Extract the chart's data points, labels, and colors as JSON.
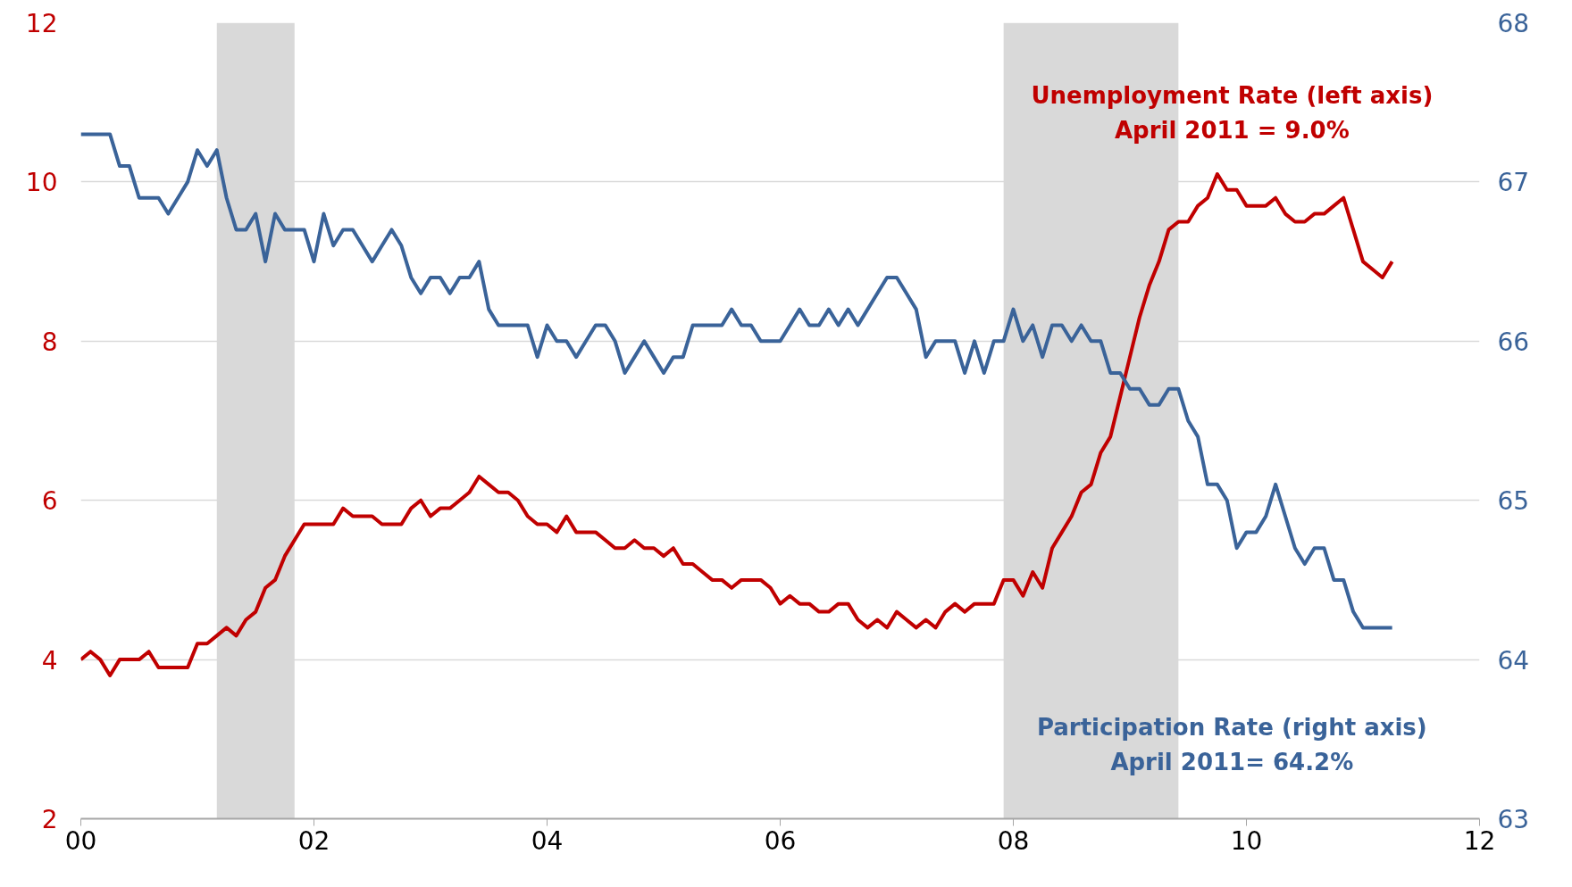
{
  "chart_data": {
    "type": "line",
    "x": [
      "2000-01",
      "2000-02",
      "2000-03",
      "2000-04",
      "2000-05",
      "2000-06",
      "2000-07",
      "2000-08",
      "2000-09",
      "2000-10",
      "2000-11",
      "2000-12",
      "2001-01",
      "2001-02",
      "2001-03",
      "2001-04",
      "2001-05",
      "2001-06",
      "2001-07",
      "2001-08",
      "2001-09",
      "2001-10",
      "2001-11",
      "2001-12",
      "2002-01",
      "2002-02",
      "2002-03",
      "2002-04",
      "2002-05",
      "2002-06",
      "2002-07",
      "2002-08",
      "2002-09",
      "2002-10",
      "2002-11",
      "2002-12",
      "2003-01",
      "2003-02",
      "2003-03",
      "2003-04",
      "2003-05",
      "2003-06",
      "2003-07",
      "2003-08",
      "2003-09",
      "2003-10",
      "2003-11",
      "2003-12",
      "2004-01",
      "2004-02",
      "2004-03",
      "2004-04",
      "2004-05",
      "2004-06",
      "2004-07",
      "2004-08",
      "2004-09",
      "2004-10",
      "2004-11",
      "2004-12",
      "2005-01",
      "2005-02",
      "2005-03",
      "2005-04",
      "2005-05",
      "2005-06",
      "2005-07",
      "2005-08",
      "2005-09",
      "2005-10",
      "2005-11",
      "2005-12",
      "2006-01",
      "2006-02",
      "2006-03",
      "2006-04",
      "2006-05",
      "2006-06",
      "2006-07",
      "2006-08",
      "2006-09",
      "2006-10",
      "2006-11",
      "2006-12",
      "2007-01",
      "2007-02",
      "2007-03",
      "2007-04",
      "2007-05",
      "2007-06",
      "2007-07",
      "2007-08",
      "2007-09",
      "2007-10",
      "2007-11",
      "2007-12",
      "2008-01",
      "2008-02",
      "2008-03",
      "2008-04",
      "2008-05",
      "2008-06",
      "2008-07",
      "2008-08",
      "2008-09",
      "2008-10",
      "2008-11",
      "2008-12",
      "2009-01",
      "2009-02",
      "2009-03",
      "2009-04",
      "2009-05",
      "2009-06",
      "2009-07",
      "2009-08",
      "2009-09",
      "2009-10",
      "2009-11",
      "2009-12",
      "2010-01",
      "2010-02",
      "2010-03",
      "2010-04",
      "2010-05",
      "2010-06",
      "2010-07",
      "2010-08",
      "2010-09",
      "2010-10",
      "2010-11",
      "2010-12",
      "2011-01",
      "2011-02",
      "2011-03",
      "2011-04"
    ],
    "series": [
      {
        "color": "#c00000",
        "values": [
          4.0,
          4.1,
          4.0,
          3.8,
          4.0,
          4.0,
          4.0,
          4.1,
          3.9,
          3.9,
          3.9,
          3.9,
          4.2,
          4.2,
          4.3,
          4.4,
          4.3,
          4.5,
          4.6,
          4.9,
          5.0,
          5.3,
          5.5,
          5.7,
          5.7,
          5.7,
          5.7,
          5.9,
          5.8,
          5.8,
          5.8,
          5.7,
          5.7,
          5.7,
          5.9,
          6.0,
          5.8,
          5.9,
          5.9,
          6.0,
          6.1,
          6.3,
          6.2,
          6.1,
          6.1,
          6.0,
          5.8,
          5.7,
          5.7,
          5.6,
          5.8,
          5.6,
          5.6,
          5.6,
          5.5,
          5.4,
          5.4,
          5.5,
          5.4,
          5.4,
          5.3,
          5.4,
          5.2,
          5.2,
          5.1,
          5.0,
          5.0,
          4.9,
          5.0,
          5.0,
          5.0,
          4.9,
          4.7,
          4.8,
          4.7,
          4.7,
          4.6,
          4.6,
          4.7,
          4.7,
          4.5,
          4.4,
          4.5,
          4.4,
          4.6,
          4.5,
          4.4,
          4.5,
          4.4,
          4.6,
          4.7,
          4.6,
          4.7,
          4.7,
          4.7,
          5.0,
          5.0,
          4.8,
          5.1,
          4.9,
          5.4,
          5.6,
          5.8,
          6.1,
          6.2,
          6.6,
          6.8,
          7.3,
          7.8,
          8.3,
          8.7,
          9.0,
          9.4,
          9.5,
          9.5,
          9.7,
          9.8,
          10.1,
          9.9,
          9.9,
          9.7,
          9.7,
          9.7,
          9.8,
          9.6,
          9.5,
          9.5,
          9.6,
          9.6,
          9.7,
          9.8,
          9.4,
          9.0,
          8.9,
          8.8,
          9.0
        ]
      },
      {
        "color": "#3a6399",
        "axis": "y2",
        "values": [
          67.3,
          67.3,
          67.3,
          67.3,
          67.1,
          67.1,
          66.9,
          66.9,
          66.9,
          66.8,
          66.9,
          67.0,
          67.2,
          67.1,
          67.2,
          66.9,
          66.7,
          66.7,
          66.8,
          66.5,
          66.8,
          66.7,
          66.7,
          66.7,
          66.5,
          66.8,
          66.6,
          66.7,
          66.7,
          66.6,
          66.5,
          66.6,
          66.7,
          66.6,
          66.4,
          66.3,
          66.4,
          66.4,
          66.3,
          66.4,
          66.4,
          66.5,
          66.2,
          66.1,
          66.1,
          66.1,
          66.1,
          65.9,
          66.1,
          66.0,
          66.0,
          65.9,
          66.0,
          66.1,
          66.1,
          66.0,
          65.8,
          65.9,
          66.0,
          65.9,
          65.8,
          65.9,
          65.9,
          66.1,
          66.1,
          66.1,
          66.1,
          66.2,
          66.1,
          66.1,
          66.0,
          66.0,
          66.0,
          66.1,
          66.2,
          66.1,
          66.1,
          66.2,
          66.1,
          66.2,
          66.1,
          66.2,
          66.3,
          66.4,
          66.4,
          66.3,
          66.2,
          65.9,
          66.0,
          66.0,
          66.0,
          65.8,
          66.0,
          65.8,
          66.0,
          66.0,
          66.2,
          66.0,
          66.1,
          65.9,
          66.1,
          66.1,
          66.0,
          66.1,
          66.0,
          66.0,
          65.8,
          65.8,
          65.7,
          65.7,
          65.6,
          65.6,
          65.7,
          65.7,
          65.5,
          65.4,
          65.1,
          65.1,
          65.0,
          64.7,
          64.8,
          64.8,
          64.9,
          65.1,
          64.9,
          64.7,
          64.6,
          64.7,
          64.7,
          64.5,
          64.5,
          64.3,
          64.2,
          64.2,
          64.2,
          64.2
        ]
      }
    ],
    "xlim": [
      "2000-01",
      "2012-01"
    ],
    "xticks": [
      {
        "value": "2000-01",
        "label": "00"
      },
      {
        "value": "2002-01",
        "label": "02"
      },
      {
        "value": "2004-01",
        "label": "04"
      },
      {
        "value": "2006-01",
        "label": "06"
      },
      {
        "value": "2008-01",
        "label": "08"
      },
      {
        "value": "2010-01",
        "label": "10"
      },
      {
        "value": "2012-01",
        "label": "12"
      }
    ],
    "ylim": [
      2,
      12
    ],
    "yticks": [
      2,
      4,
      6,
      8,
      10,
      12
    ],
    "y2lim": [
      63,
      68
    ],
    "y2ticks": [
      63,
      64,
      65,
      66,
      67,
      68
    ],
    "bands": [
      {
        "axis": "x",
        "from": "2001-03",
        "to": "2001-11",
        "color": "#d9d9d9"
      },
      {
        "axis": "x",
        "from": "2007-12",
        "to": "2009-06",
        "color": "#d9d9d9"
      }
    ],
    "annotations": [
      "Unemployment Rate (left axis)\nApril 2011 = 9.0%",
      "Participation Rate (right axis)\nApril 2011= 64.2%"
    ],
    "grid": "y"
  }
}
